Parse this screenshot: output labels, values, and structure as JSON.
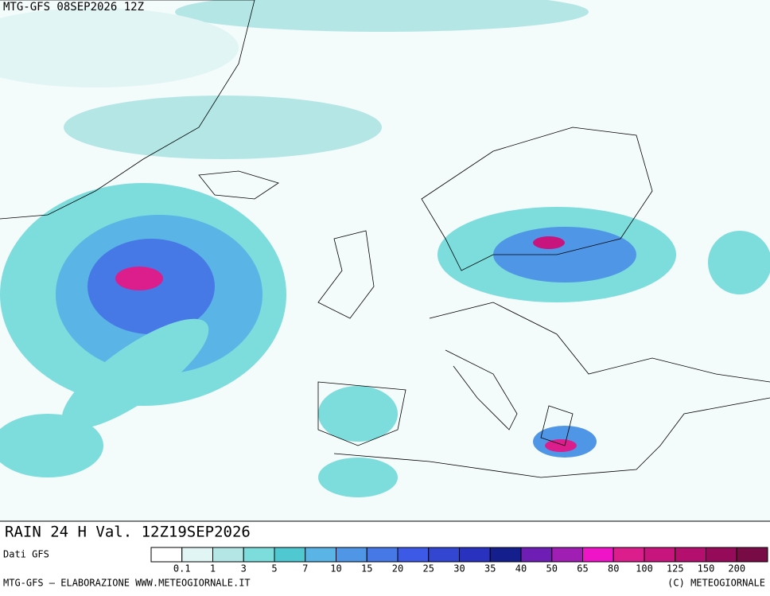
{
  "header": {
    "title": "MTG-GFS 08SEP2026 12Z"
  },
  "map": {
    "caption": "RAIN 24 H Val. 12Z19SEP2026"
  },
  "legend": {
    "source": "Dati GFS",
    "colors": [
      "#ffffff",
      "#e1f5f5",
      "#b4e6e6",
      "#7ddcdc",
      "#50c8d2",
      "#5ab4e6",
      "#5096e6",
      "#4678e6",
      "#3c5ae6",
      "#3246d2",
      "#2832be",
      "#141e8c",
      "#6e1eb4",
      "#a01eb4",
      "#f014c8",
      "#dc1e8c",
      "#c8147d",
      "#b40f6e",
      "#960a5a",
      "#780a46"
    ],
    "labels": [
      0.1,
      1,
      3,
      5,
      7,
      10,
      15,
      20,
      25,
      30,
      35,
      40,
      50,
      65,
      80,
      100,
      125,
      150,
      200
    ]
  },
  "footer": {
    "left": "MTG-GFS — ELABORAZIONE WWW.METEOGIORNALE.IT",
    "right": "(C) METEOGIORNALE"
  }
}
